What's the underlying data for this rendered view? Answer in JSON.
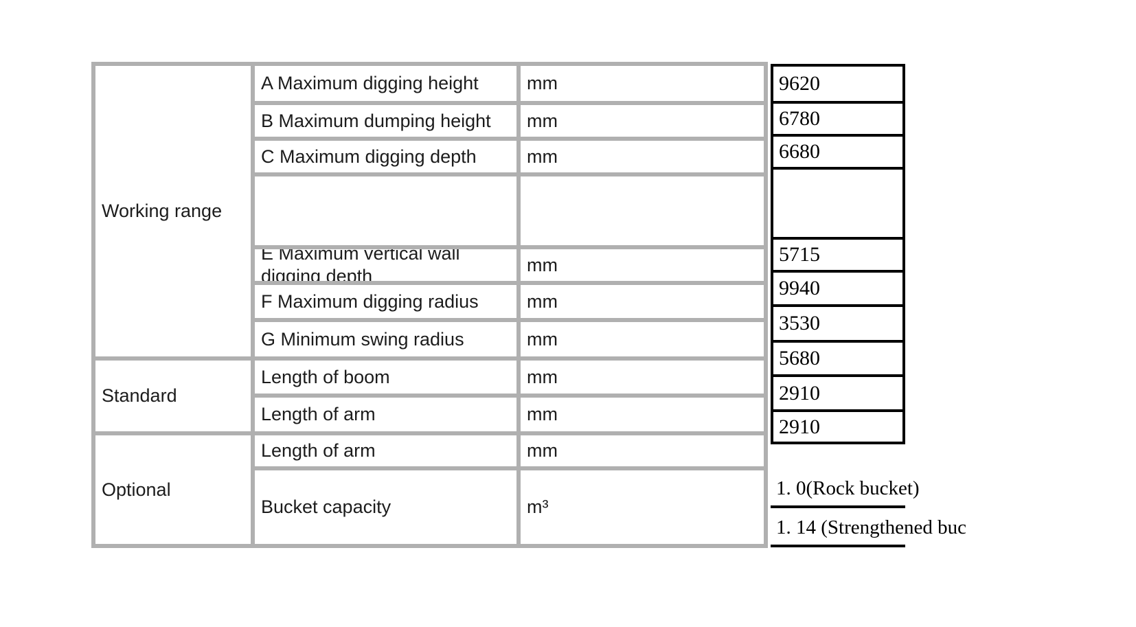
{
  "page": {
    "background": "#ffffff"
  },
  "colors": {
    "table_border": "#b0b0b0",
    "value_box_border": "#000000",
    "label_text": "#1c1c1c",
    "value_text": "#000000"
  },
  "table": {
    "sections": [
      {
        "label": "Working range"
      },
      {
        "label": "Standard"
      },
      {
        "label": "Optional"
      }
    ],
    "rows": [
      {
        "label": "A Maximum digging height",
        "unit": "mm",
        "value": "9620"
      },
      {
        "label": "B Maximum dumping height",
        "unit": "mm",
        "value": "6780"
      },
      {
        "label": "C Maximum digging depth",
        "unit": "mm",
        "value": "6680"
      },
      {
        "label": "",
        "unit": "",
        "value": ""
      },
      {
        "label": "E Maximum vertical wall digging depth",
        "unit": "mm",
        "value": "5715"
      },
      {
        "label": "F Maximum digging radius",
        "unit": "mm",
        "value": "9940"
      },
      {
        "label": "G Minimum swing radius",
        "unit": "mm",
        "value": "3530"
      },
      {
        "label": "Length of boom",
        "unit": "mm",
        "value": "5680"
      },
      {
        "label": "Length of arm",
        "unit": "mm",
        "value": "2910"
      },
      {
        "label": "Length of arm",
        "unit": "mm",
        "value": "2910"
      },
      {
        "label": "Bucket capacity",
        "unit": "m³",
        "value_options": [
          "1. 0(Rock bucket)",
          "1. 14 (Strengthened buc"
        ]
      }
    ]
  }
}
